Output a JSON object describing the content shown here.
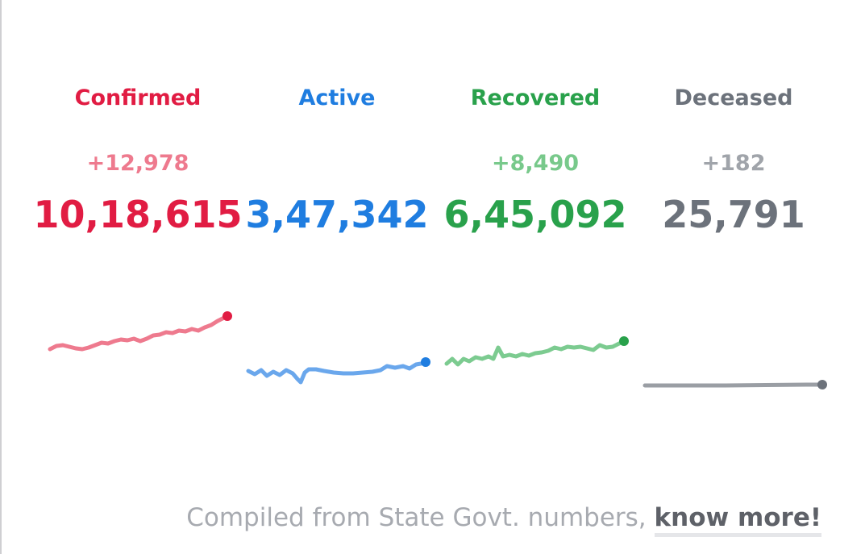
{
  "stats": [
    {
      "key": "confirmed",
      "title": "Confirmed",
      "delta": "+12,978",
      "total": "10,18,615",
      "color": "#e11c43",
      "delta_color": "#ee7a8e",
      "spark_color": "#ee7a8e",
      "dot_color": "#e11c43"
    },
    {
      "key": "active",
      "title": "Active",
      "delta": "",
      "total": "3,47,342",
      "color": "#1f7de0",
      "delta_color": "#6aa7ec",
      "spark_color": "#6aa7ec",
      "dot_color": "#1f7de0"
    },
    {
      "key": "recovered",
      "title": "Recovered",
      "delta": "+8,490",
      "total": "6,45,092",
      "color": "#29a14b",
      "delta_color": "#78c98b",
      "spark_color": "#7ccb90",
      "dot_color": "#29a14b"
    },
    {
      "key": "deceased",
      "title": "Deceased",
      "delta": "+182",
      "total": "25,791",
      "color": "#6c727b",
      "delta_color": "#a0a4aa",
      "spark_color": "#9a9ea4",
      "dot_color": "#6c727b"
    }
  ],
  "footer": {
    "text": "Compiled from State Govt. numbers, ",
    "link": "know more!"
  }
}
